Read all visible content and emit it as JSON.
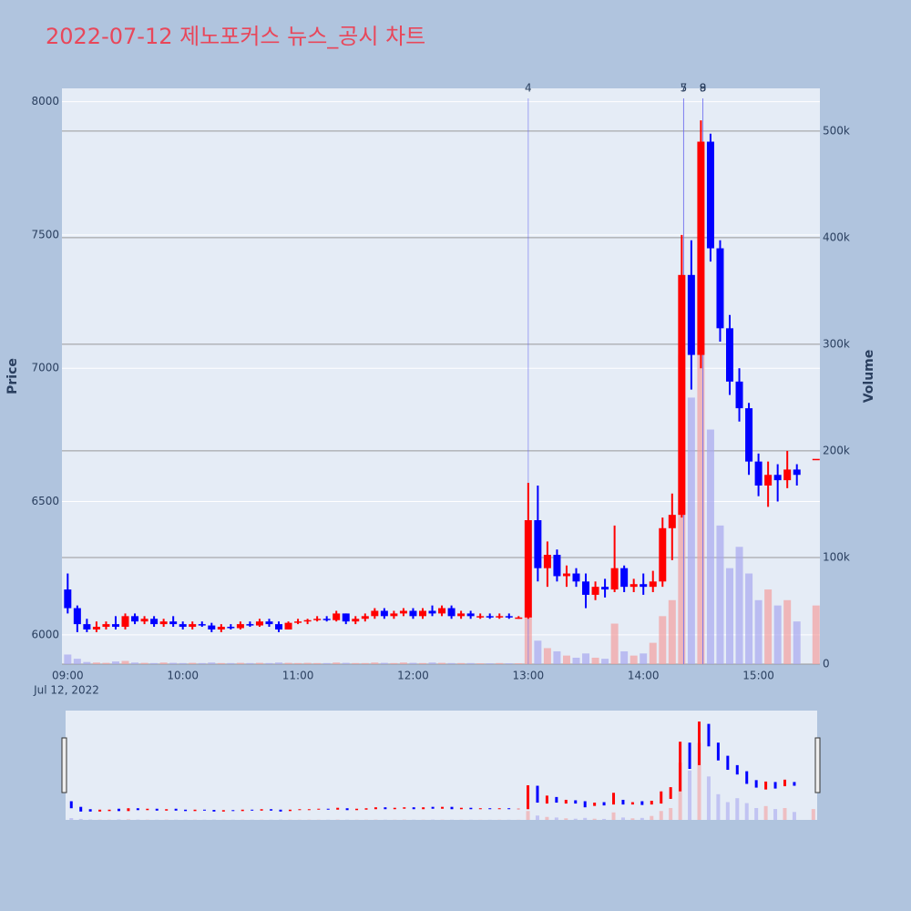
{
  "chart_data": {
    "type": "candlestick",
    "title": "2022-07-12 제노포커스 뉴스_공시 차트",
    "y_title": "Price",
    "y2_title": "Volume",
    "x_date_label": "Jul 12, 2022",
    "increasing_color": "#ff0000",
    "decreasing_color": "#0000ff",
    "volume_increasing_color": "#f4a0a0",
    "volume_decreasing_color": "#a8a8f0",
    "x": [
      "09:00",
      "09:05",
      "09:10",
      "09:15",
      "09:20",
      "09:25",
      "09:30",
      "09:35",
      "09:40",
      "09:45",
      "09:50",
      "09:55",
      "10:00",
      "10:05",
      "10:10",
      "10:15",
      "10:20",
      "10:25",
      "10:30",
      "10:35",
      "10:40",
      "10:45",
      "10:50",
      "10:55",
      "11:00",
      "11:05",
      "11:10",
      "11:15",
      "11:20",
      "11:25",
      "11:30",
      "11:35",
      "11:40",
      "11:45",
      "11:50",
      "11:55",
      "12:00",
      "12:05",
      "12:10",
      "12:15",
      "12:20",
      "12:25",
      "12:30",
      "12:35",
      "12:40",
      "12:45",
      "12:50",
      "12:55",
      "13:00",
      "13:05",
      "13:10",
      "13:15",
      "13:20",
      "13:25",
      "13:30",
      "13:35",
      "13:40",
      "13:45",
      "13:50",
      "13:55",
      "14:00",
      "14:05",
      "14:10",
      "14:15",
      "14:20",
      "14:25",
      "14:30",
      "14:35",
      "14:40",
      "14:45",
      "14:50",
      "14:55",
      "15:00",
      "15:05",
      "15:10",
      "15:15",
      "15:20",
      "15:30"
    ],
    "open": [
      6170,
      6100,
      6040,
      6020,
      6030,
      6040,
      6030,
      6070,
      6050,
      6060,
      6040,
      6050,
      6040,
      6030,
      6040,
      6035,
      6020,
      6030,
      6025,
      6040,
      6035,
      6050,
      6040,
      6020,
      6045,
      6050,
      6055,
      6060,
      6055,
      6080,
      6050,
      6060,
      6070,
      6090,
      6070,
      6080,
      6090,
      6070,
      6090,
      6080,
      6100,
      6070,
      6080,
      6070,
      6070,
      6065,
      6070,
      6065,
      6065,
      6430,
      6250,
      6300,
      6220,
      6230,
      6200,
      6150,
      6180,
      6170,
      6250,
      6180,
      6190,
      6180,
      6200,
      6400,
      6450,
      7350,
      7050,
      7850,
      7450,
      7150,
      6950,
      6850,
      6650,
      6560,
      6600,
      6580,
      6620,
      6660
    ],
    "high": [
      6230,
      6110,
      6060,
      6050,
      6050,
      6070,
      6080,
      6080,
      6070,
      6070,
      6060,
      6070,
      6050,
      6050,
      6050,
      6045,
      6040,
      6040,
      6050,
      6050,
      6060,
      6060,
      6050,
      6050,
      6060,
      6060,
      6070,
      6070,
      6090,
      6080,
      6070,
      6080,
      6100,
      6100,
      6090,
      6100,
      6100,
      6100,
      6110,
      6110,
      6110,
      6090,
      6090,
      6080,
      6080,
      6080,
      6080,
      6070,
      6570,
      6560,
      6350,
      6320,
      6260,
      6250,
      6230,
      6200,
      6210,
      6410,
      6260,
      6210,
      6230,
      6240,
      6440,
      6530,
      7500,
      7480,
      7930,
      7880,
      7480,
      7200,
      7000,
      6870,
      6680,
      6650,
      6640,
      6690,
      6640,
      6660
    ],
    "low": [
      6080,
      6010,
      6010,
      6010,
      6020,
      6020,
      6020,
      6040,
      6040,
      6030,
      6030,
      6030,
      6020,
      6020,
      6030,
      6010,
      6010,
      6020,
      6020,
      6030,
      6030,
      6030,
      6010,
      6020,
      6040,
      6040,
      6050,
      6050,
      6050,
      6040,
      6040,
      6050,
      6060,
      6060,
      6060,
      6070,
      6060,
      6060,
      6070,
      6070,
      6060,
      6060,
      6060,
      6060,
      6060,
      6060,
      6060,
      6060,
      6060,
      6200,
      6180,
      6200,
      6180,
      6180,
      6100,
      6130,
      6140,
      6160,
      6160,
      6160,
      6150,
      6160,
      6180,
      6280,
      6440,
      6920,
      7000,
      7400,
      7100,
      6900,
      6800,
      6600,
      6520,
      6480,
      6500,
      6550,
      6560,
      6660
    ],
    "close": [
      6100,
      6040,
      6020,
      6030,
      6040,
      6030,
      6070,
      6050,
      6060,
      6040,
      6050,
      6040,
      6030,
      6040,
      6035,
      6020,
      6030,
      6025,
      6040,
      6035,
      6050,
      6040,
      6020,
      6045,
      6050,
      6055,
      6060,
      6055,
      6080,
      6050,
      6060,
      6070,
      6090,
      6070,
      6080,
      6090,
      6070,
      6090,
      6080,
      6100,
      6070,
      6080,
      6070,
      6070,
      6065,
      6070,
      6065,
      6065,
      6430,
      6250,
      6300,
      6220,
      6230,
      6200,
      6150,
      6180,
      6170,
      6250,
      6180,
      6190,
      6180,
      6200,
      6400,
      6450,
      7350,
      7050,
      7850,
      7450,
      7150,
      6950,
      6850,
      6650,
      6560,
      6600,
      6580,
      6620,
      6600,
      6660
    ],
    "volume": [
      9000,
      5000,
      2000,
      1500,
      1200,
      2500,
      3000,
      1500,
      1200,
      1000,
      1500,
      1200,
      1000,
      1200,
      1000,
      1500,
      1000,
      1000,
      1200,
      1000,
      1200,
      1000,
      1500,
      1200,
      1000,
      1200,
      1000,
      1000,
      1500,
      1200,
      1000,
      1000,
      1500,
      1200,
      1000,
      1500,
      1200,
      1000,
      1500,
      1200,
      1000,
      1000,
      1000,
      800,
      800,
      1000,
      800,
      800,
      45000,
      22000,
      15000,
      12000,
      8000,
      6000,
      10000,
      6000,
      5000,
      38000,
      12000,
      8000,
      10000,
      20000,
      45000,
      60000,
      290000,
      250000,
      390000,
      220000,
      130000,
      90000,
      110000,
      85000,
      60000,
      70000,
      55000,
      60000,
      40000,
      55000
    ],
    "ylim": [
      5890,
      8050
    ],
    "yticks": [
      6000,
      6500,
      7000,
      7500,
      8000
    ],
    "y2lim": [
      0,
      540000
    ],
    "y2ticks": [
      0,
      {
        "value": 100000,
        "label": "100k"
      },
      {
        "value": 200000,
        "label": "200k"
      },
      {
        "value": 300000,
        "label": "300k"
      },
      {
        "value": 400000,
        "label": "400k"
      },
      {
        "value": 500000,
        "label": "500k"
      }
    ],
    "xlim": [
      "08:57",
      "15:32"
    ],
    "xticks": [
      "09:00",
      "10:00",
      "11:00",
      "12:00",
      "13:00",
      "14:00",
      "15:00"
    ],
    "annotations": [
      {
        "x": "13:00",
        "label": "4"
      },
      {
        "x": "14:21",
        "label": "5"
      },
      {
        "x": "14:21",
        "label": "7"
      },
      {
        "x": "14:31",
        "label": "8"
      },
      {
        "x": "14:31",
        "label": "9"
      }
    ],
    "grid": true,
    "rangeslider": true
  }
}
